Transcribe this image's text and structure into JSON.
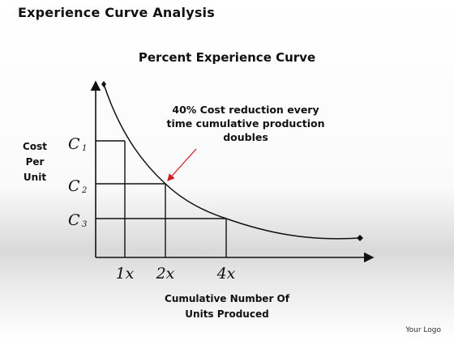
{
  "title": "Experience Curve Analysis",
  "subtitle": "Percent Experience Curve",
  "y_axis_label": [
    "Cost",
    "Per",
    "Unit"
  ],
  "annotation": [
    "40% Cost reduction every",
    "time cumulative production",
    "doubles"
  ],
  "x_axis_label": [
    "Cumulative Number Of",
    "Units Produced"
  ],
  "cost_levels": [
    {
      "letter": "C",
      "index": "1"
    },
    {
      "letter": "C",
      "index": "2"
    },
    {
      "letter": "C",
      "index": "3"
    }
  ],
  "volume_marks": [
    "1x",
    "2x",
    "4x"
  ],
  "logo": "Your Logo",
  "colors": {
    "arrow": "#cc2222",
    "ink": "#111111"
  }
}
